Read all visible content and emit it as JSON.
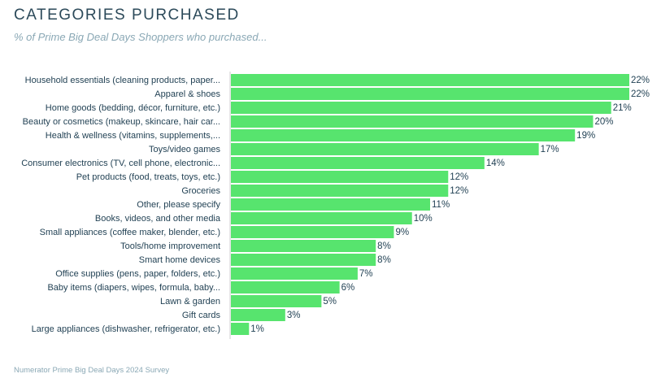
{
  "title": "CATEGORIES PURCHASED",
  "subtitle": "% of Prime Big Deal Days Shoppers who purchased...",
  "source": "Numerator Prime Big Deal Days 2024 Survey",
  "colors": {
    "bar": "#57e46e",
    "title": "#2c4a5a",
    "subtitle": "#8aa8b5",
    "text": "#1f3f52",
    "axis": "#cccccc"
  },
  "chart_data": {
    "type": "bar",
    "orientation": "horizontal",
    "value_suffix": "%",
    "categories": [
      "Household essentials (cleaning products, paper...",
      "Apparel & shoes",
      "Home goods (bedding, décor, furniture, etc.)",
      "Beauty or cosmetics (makeup, skincare, hair car...",
      "Health & wellness (vitamins, supplements,...",
      "Toys/video games",
      "Consumer electronics (TV, cell phone, electronic...",
      "Pet products (food, treats, toys, etc.)",
      "Groceries",
      "Other, please specify",
      "Books, videos, and other media",
      "Small appliances (coffee maker, blender, etc.)",
      "Tools/home improvement",
      "Smart home devices",
      "Office supplies (pens, paper, folders, etc.)",
      "Baby items (diapers, wipes, formula, baby...",
      "Lawn & garden",
      "Gift cards",
      "Large appliances (dishwasher, refrigerator, etc.)"
    ],
    "values": [
      22,
      22,
      21,
      20,
      19,
      17,
      14,
      12,
      12,
      11,
      10,
      9,
      8,
      8,
      7,
      6,
      5,
      3,
      1
    ],
    "xlim": [
      0,
      22
    ],
    "grid": false,
    "legend": "none"
  }
}
